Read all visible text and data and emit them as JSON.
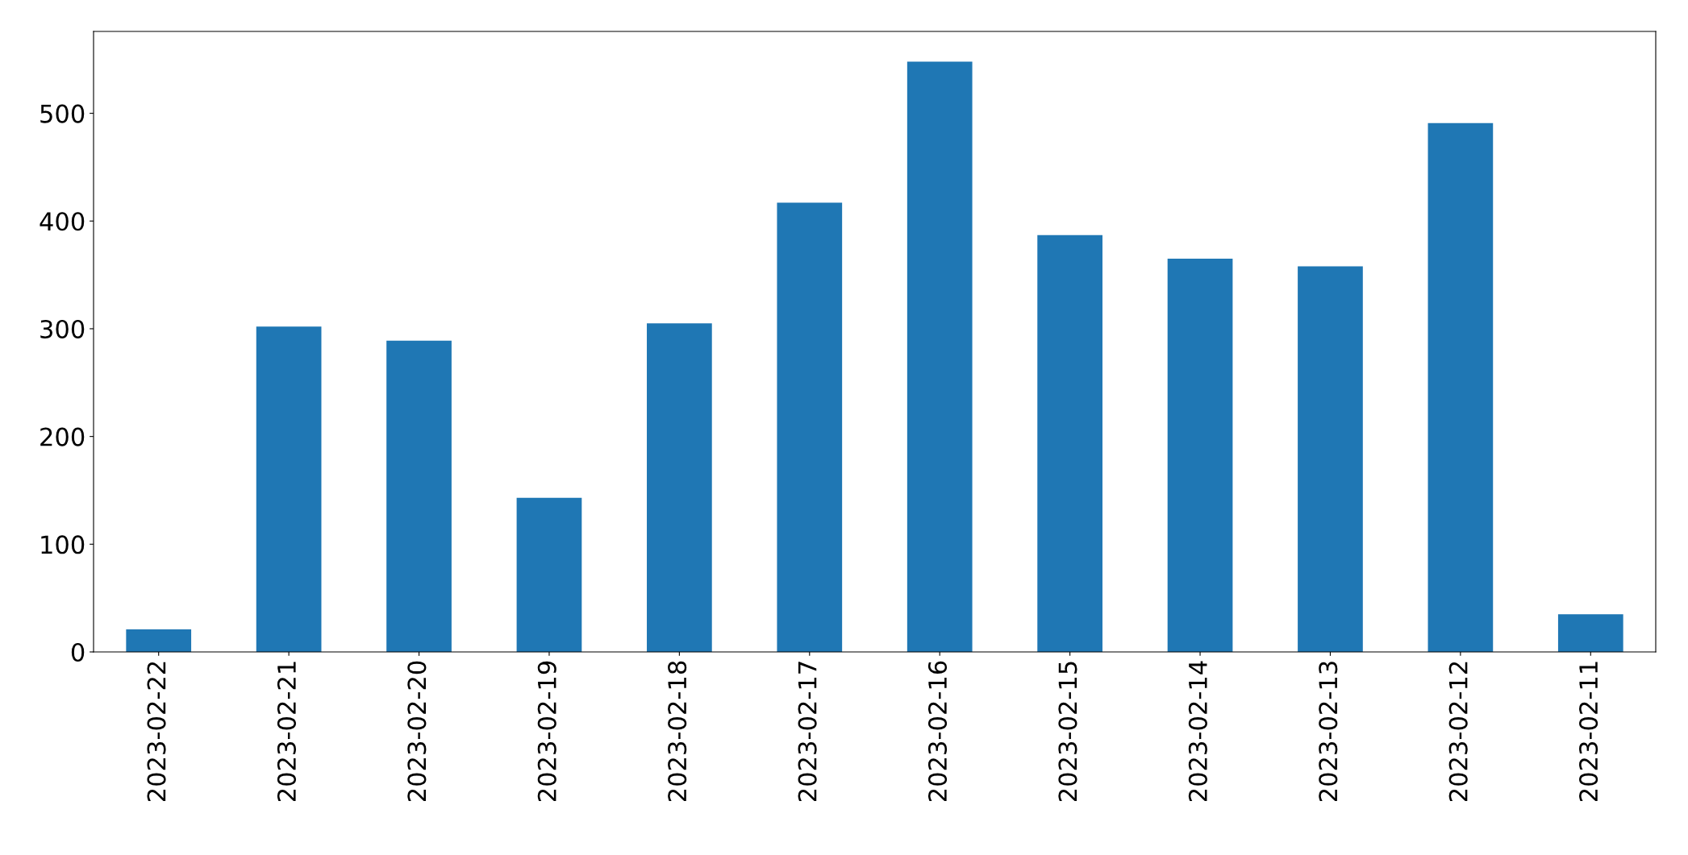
{
  "chart_data": {
    "type": "bar",
    "categories": [
      "2023-02-22",
      "2023-02-21",
      "2023-02-20",
      "2023-02-19",
      "2023-02-18",
      "2023-02-17",
      "2023-02-16",
      "2023-02-15",
      "2023-02-14",
      "2023-02-13",
      "2023-02-12",
      "2023-02-11"
    ],
    "values": [
      21,
      302,
      289,
      143,
      305,
      417,
      548,
      387,
      365,
      358,
      491,
      35
    ],
    "color": "#1f77b4",
    "ylim": [
      0,
      576
    ],
    "yticks": [
      0,
      100,
      200,
      300,
      400,
      500
    ],
    "grid": false,
    "legend": false
  }
}
